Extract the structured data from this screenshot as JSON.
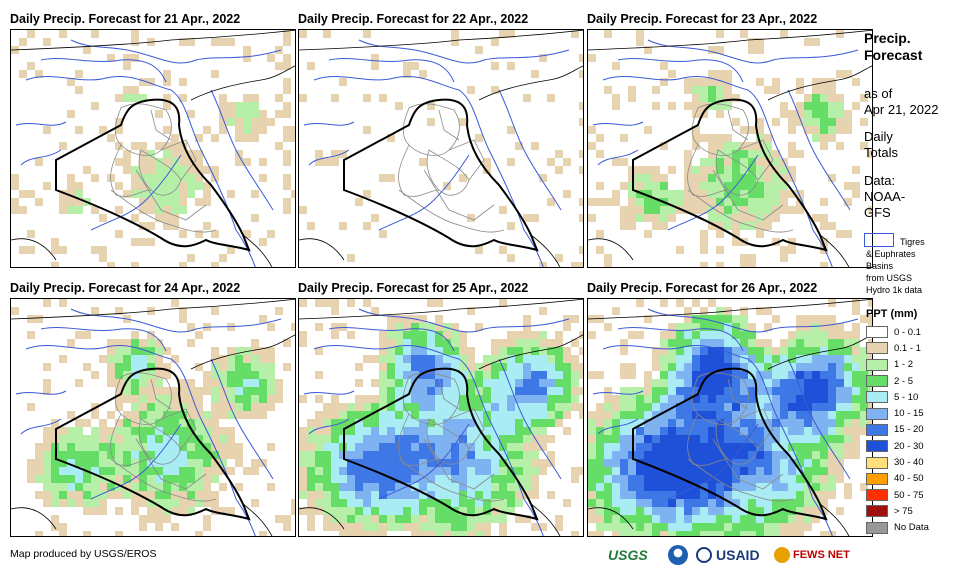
{
  "panels": [
    {
      "title": "Daily Precip. Forecast for 21 Apr., 2022",
      "intensity": 1
    },
    {
      "title": "Daily Precip. Forecast for 22 Apr., 2022",
      "intensity": 0
    },
    {
      "title": "Daily Precip. Forecast for 23 Apr., 2022",
      "intensity": 2
    },
    {
      "title": "Daily Precip. Forecast for 24 Apr., 2022",
      "intensity": 3
    },
    {
      "title": "Daily Precip. Forecast for 25 Apr., 2022",
      "intensity": 5
    },
    {
      "title": "Daily Precip. Forecast for 26 Apr., 2022",
      "intensity": 6
    }
  ],
  "sidebar": {
    "title_line1": "Precip.",
    "title_line2": "Forecast",
    "asof_line1": "as of",
    "asof_line2": "Apr 21, 2022",
    "daily_line1": "Daily",
    "daily_line2": "Totals",
    "data_line1": "Data:",
    "data_line2": "NOAA-",
    "data_line3": "GFS",
    "basin_line1": "Tigres",
    "basin_line2": "& Euphrates",
    "basin_line3": "Basins",
    "basin_line4": "from USGS",
    "basin_line5": "Hydro 1k data"
  },
  "legend": {
    "title": "PPT (mm)",
    "items": [
      {
        "label": "0 - 0.1",
        "color": "#ffffff"
      },
      {
        "label": "0.1 - 1",
        "color": "#e8d3b0"
      },
      {
        "label": "1 - 2",
        "color": "#b6f0a8"
      },
      {
        "label": "2 - 5",
        "color": "#66dd66"
      },
      {
        "label": "5 - 10",
        "color": "#a9ecf4"
      },
      {
        "label": "10 - 15",
        "color": "#7fb2f0"
      },
      {
        "label": "15 - 20",
        "color": "#3d78e6"
      },
      {
        "label": "20 - 30",
        "color": "#1f50d8"
      },
      {
        "label": "30 - 40",
        "color": "#ffe07a"
      },
      {
        "label": "40 - 50",
        "color": "#ffa000"
      },
      {
        "label": "50 - 75",
        "color": "#ff3000"
      },
      {
        "label": "> 75",
        "color": "#a01010"
      },
      {
        "label": "No Data",
        "color": "#999999"
      }
    ]
  },
  "footer": {
    "credit": "Map produced by USGS/EROS",
    "logo_usgs": "USGS",
    "logo_usaid": "USAID",
    "logo_fews": "FEWS NET"
  },
  "colors": {
    "river": "#3a5ad6",
    "border": "#000000",
    "province": "#8a8a8a"
  }
}
